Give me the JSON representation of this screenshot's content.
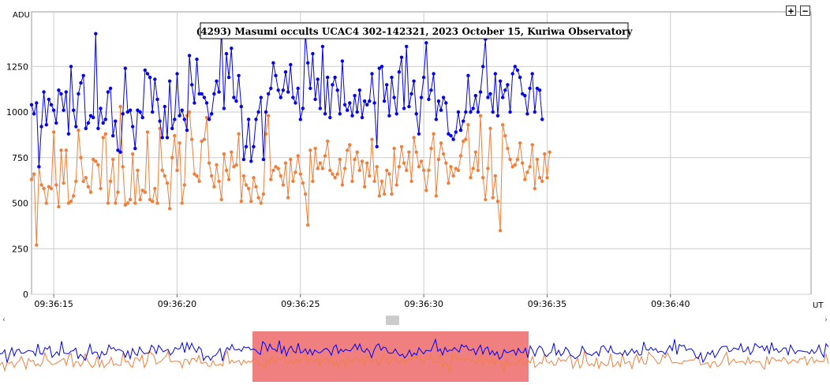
{
  "chart_data": {
    "type": "line",
    "title": "(4293) Masumi occults UCAC4 302-142321, 2023 October 15, Kuriwa Observatory",
    "ylabel": "ADU",
    "xlabel": "UT",
    "ylim": [
      0,
      1550
    ],
    "yticks": [
      0,
      250,
      500,
      750,
      1000,
      1250
    ],
    "x_tick_labels": [
      "09:36:15",
      "09:36:20",
      "09:36:25",
      "09:36:30",
      "09:36:35",
      "09:36:40"
    ],
    "x_tick_times_s": [
      15,
      20,
      25,
      30,
      35,
      40
    ],
    "xlim_s": [
      14.1,
      45.7
    ],
    "grid": true,
    "series": [
      {
        "color": "#0000ee",
        "x_start_s": 14.1,
        "x_step_s": 0.1,
        "values": [
          1040,
          990,
          1050,
          700,
          920,
          1110,
          930,
          1070,
          1040,
          1010,
          940,
          1120,
          1100,
          1010,
          1110,
          880,
          1250,
          1010,
          920,
          1100,
          1160,
          1200,
          910,
          940,
          980,
          970,
          1430,
          910,
          1020,
          940,
          960,
          1110,
          1130,
          870,
          950,
          790,
          780,
          990,
          1240,
          1000,
          1010,
          920,
          800,
          1010,
          1000,
          970,
          1230,
          1210,
          1190,
          1000,
          1180,
          1070,
          950,
          860,
          1030,
          860,
          1170,
          910,
          960,
          1210,
          980,
          1010,
          960,
          900,
          1310,
          1150,
          1050,
          1290,
          1100,
          1100,
          1080,
          1050,
          960,
          990,
          1100,
          1170,
          1110,
          1460,
          1020,
          1320,
          1190,
          1350,
          1080,
          1060,
          1200,
          1030,
          740,
          810,
          960,
          730,
          810,
          960,
          1000,
          1080,
          740,
          1000,
          1100,
          1130,
          1270,
          1200,
          1120,
          1080,
          1120,
          1220,
          1110,
          1260,
          1080,
          1050,
          1130,
          960,
          1020,
          1430,
          1270,
          1130,
          1320,
          1070,
          1180,
          1020,
          1360,
          990,
          1190,
          970,
          1150,
          1190,
          1120,
          990,
          1280,
          1040,
          1010,
          1050,
          980,
          1090,
          1000,
          1120,
          970,
          1060,
          1040,
          1060,
          1210,
          1050,
          810,
          1240,
          1250,
          1060,
          1150,
          980,
          1190,
          1080,
          990,
          1220,
          1300,
          1020,
          1360,
          1030,
          1100,
          1170,
          990,
          880,
          1080,
          1190,
          1380,
          1070,
          1120,
          1210,
          960,
          1060,
          1010,
          1080,
          1050,
          880,
          870,
          850,
          890,
          1000,
          900,
          950,
          1000,
          1200,
          1000,
          1020,
          1090,
          1000,
          1110,
          1250,
          1400,
          1080,
          1100,
          1000,
          1210,
          980,
          1170,
          1080,
          1120,
          1150,
          1000,
          1210,
          1250,
          1230,
          1190,
          1100,
          1090,
          990,
          1130,
          1210,
          1000,
          1130,
          1120,
          960
        ]
      },
      {
        "color": "#f07f3c",
        "x_start_s": 14.1,
        "x_step_s": 0.1,
        "values": [
          630,
          660,
          270,
          700,
          600,
          580,
          500,
          590,
          580,
          890,
          600,
          480,
          790,
          610,
          790,
          500,
          510,
          540,
          620,
          900,
          750,
          620,
          640,
          590,
          560,
          740,
          730,
          710,
          580,
          860,
          880,
          500,
          620,
          740,
          500,
          560,
          1030,
          700,
          490,
          500,
          520,
          770,
          500,
          680,
          520,
          570,
          560,
          890,
          520,
          510,
          580,
          500,
          910,
          680,
          650,
          610,
          470,
          750,
          870,
          680,
          830,
          500,
          600,
          980,
          1000,
          850,
          660,
          650,
          620,
          840,
          850,
          970,
          720,
          650,
          590,
          710,
          620,
          520,
          770,
          680,
          630,
          780,
          700,
          710,
          880,
          510,
          650,
          600,
          580,
          510,
          640,
          590,
          530,
          500,
          550,
          880,
          980,
          630,
          680,
          700,
          690,
          650,
          600,
          720,
          530,
          740,
          620,
          670,
          760,
          660,
          610,
          550,
          380,
          790,
          620,
          800,
          690,
          720,
          690,
          760,
          840,
          680,
          660,
          640,
          660,
          740,
          600,
          690,
          790,
          820,
          620,
          740,
          780,
          680,
          730,
          590,
          720,
          650,
          850,
          620,
          700,
          540,
          620,
          550,
          680,
          660,
          550,
          800,
          600,
          700,
          810,
          720,
          680,
          780,
          620,
          860,
          780,
          700,
          730,
          680,
          570,
          680,
          800,
          880,
          540,
          740,
          830,
          770,
          720,
          610,
          700,
          650,
          690,
          680,
          760,
          840,
          850,
          930,
          640,
          690,
          780,
          680,
          980,
          640,
          520,
          690,
          910,
          530,
          650,
          510,
          350,
          930,
          870,
          800,
          740,
          700,
          710,
          740,
          830,
          720,
          630,
          670,
          700,
          820,
          580,
          740,
          640,
          620,
          770,
          640,
          780
        ]
      }
    ],
    "overview": {
      "highlight_start_s": 22.4,
      "highlight_end_s": 34.5,
      "highlight_color": "#f08080"
    }
  },
  "controls": {
    "zoom_in": "+",
    "zoom_out": "−",
    "scroll_left": "‹",
    "scroll_right": "›"
  }
}
